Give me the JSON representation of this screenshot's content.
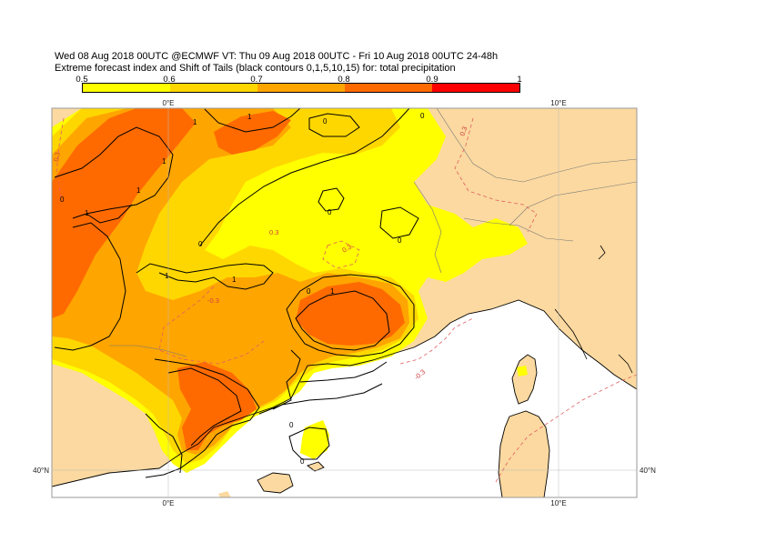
{
  "title_line1": "Wed 08 Aug 2018 00UTC @ECMWF VT: Thu 09 Aug 2018 00UTC - Fri 10 Aug 2018 00UTC  24-48h",
  "title_line2": "Extreme forecast index and Shift of Tails (black contours 0,1,5,10,15) for: total precipitation",
  "colorbar": {
    "ticks": [
      "0.5",
      "0.6",
      "0.7",
      "0.8",
      "0.9",
      "1"
    ],
    "colors": [
      "#ffff00",
      "#ffd700",
      "#ffa500",
      "#ff6a00",
      "#ff0000"
    ]
  },
  "colors": {
    "land": "#fbd9a0",
    "sea": "#ffffff",
    "efi_06": "#ffd700",
    "efi_05": "#ffff00",
    "efi_07": "#ffa500",
    "efi_08": "#ff6a00",
    "sot_contour": "#000000",
    "efi_neg_contour": "#e06060"
  },
  "axes": {
    "top_lon_labels": [
      "0°E",
      "10°E"
    ],
    "bottom_lon_labels": [
      "0°E",
      "10°E"
    ],
    "left_lat_labels": [
      "40°N"
    ],
    "right_lat_labels": [
      "40°N"
    ]
  },
  "contour_labels": {
    "sot": [
      "0",
      "1",
      "0",
      "1",
      "0",
      "1",
      "1",
      "0",
      "0",
      "0",
      "1",
      "0",
      "1",
      "1",
      "1",
      "0",
      "0"
    ],
    "efi": [
      "0.3",
      "0.3",
      "-0.3",
      "0.3",
      "0.3",
      "-0.3"
    ]
  }
}
